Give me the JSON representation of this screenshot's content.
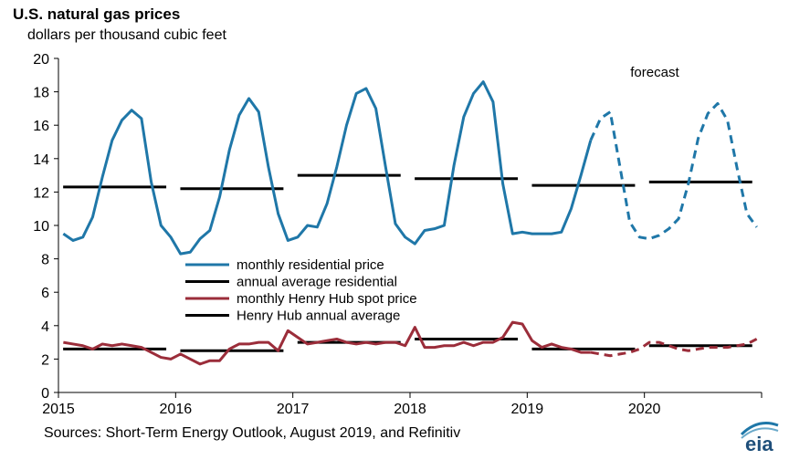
{
  "header": {
    "title": "U.S. natural gas prices",
    "subtitle": "dollars per thousand  cubic feet"
  },
  "footer": {
    "source": "Sources: Short-Term Energy Outlook, August 2019, and Refinitiv"
  },
  "logo": {
    "text": "eia",
    "icon": "eia-logo-icon"
  },
  "chart_data": {
    "type": "line",
    "annotation": "forecast",
    "forecast_start": 2019.58,
    "xlim": [
      2015.0,
      2021.0
    ],
    "ylim": [
      0,
      20
    ],
    "x_ticks": [
      "2015",
      "2016",
      "2017",
      "2018",
      "2019",
      "2020"
    ],
    "y_ticks": [
      "0",
      "2",
      "4",
      "6",
      "8",
      "10",
      "12",
      "14",
      "16",
      "18",
      "20"
    ],
    "grid": false,
    "legend_position": "center-left",
    "colors": {
      "residential": "#1f77a8",
      "henry_hub": "#9b2d3a",
      "average": "#000000"
    },
    "series": [
      {
        "name": "monthly residential price",
        "color": "#1f77a8",
        "values": [
          9.5,
          9.1,
          9.3,
          10.5,
          12.9,
          15.1,
          16.3,
          16.9,
          16.4,
          12.6,
          10.0,
          9.3,
          8.3,
          8.4,
          9.2,
          9.7,
          11.7,
          14.5,
          16.6,
          17.6,
          16.8,
          13.5,
          10.7,
          9.1,
          9.3,
          10.0,
          9.9,
          11.3,
          13.5,
          16.0,
          17.9,
          18.2,
          17.0,
          13.5,
          10.1,
          9.3,
          8.9,
          9.7,
          9.8,
          10.0,
          13.6,
          16.5,
          17.9,
          18.6,
          17.4,
          12.5,
          9.5,
          9.6,
          9.5,
          9.5,
          9.5,
          9.6,
          11.0,
          13.0,
          15.1,
          16.4,
          16.8,
          13.5,
          10.2,
          9.3,
          9.2,
          9.4,
          9.8,
          10.4,
          12.5,
          15.2,
          16.7,
          17.3,
          16.3,
          13.4,
          10.7,
          9.9
        ]
      },
      {
        "name": "annual average residential",
        "color": "#000000",
        "segments": [
          {
            "year": 2015,
            "value": 12.3
          },
          {
            "year": 2016,
            "value": 12.2
          },
          {
            "year": 2017,
            "value": 13.0
          },
          {
            "year": 2018,
            "value": 12.8
          },
          {
            "year": 2019,
            "value": 12.4
          },
          {
            "year": 2020,
            "value": 12.6
          }
        ]
      },
      {
        "name": "monthly Henry Hub spot price",
        "color": "#9b2d3a",
        "values": [
          3.0,
          2.9,
          2.8,
          2.6,
          2.9,
          2.8,
          2.9,
          2.8,
          2.7,
          2.4,
          2.1,
          2.0,
          2.3,
          2.0,
          1.7,
          1.9,
          1.9,
          2.6,
          2.9,
          2.9,
          3.0,
          3.0,
          2.5,
          3.7,
          3.3,
          2.9,
          3.0,
          3.1,
          3.2,
          3.0,
          2.9,
          3.0,
          2.9,
          3.0,
          3.0,
          2.8,
          3.9,
          2.7,
          2.7,
          2.8,
          2.8,
          3.0,
          2.8,
          3.0,
          3.0,
          3.3,
          4.2,
          4.1,
          3.1,
          2.7,
          2.9,
          2.7,
          2.6,
          2.4,
          2.4,
          2.3,
          2.2,
          2.3,
          2.4,
          2.6,
          3.0,
          3.0,
          2.8,
          2.6,
          2.5,
          2.6,
          2.7,
          2.7,
          2.7,
          2.8,
          2.9,
          3.2
        ]
      },
      {
        "name": "Henry Hub annual average",
        "color": "#000000",
        "segments": [
          {
            "year": 2015,
            "value": 2.6
          },
          {
            "year": 2016,
            "value": 2.5
          },
          {
            "year": 2017,
            "value": 3.0
          },
          {
            "year": 2018,
            "value": 3.2
          },
          {
            "year": 2019,
            "value": 2.6
          },
          {
            "year": 2020,
            "value": 2.8
          }
        ]
      }
    ]
  }
}
